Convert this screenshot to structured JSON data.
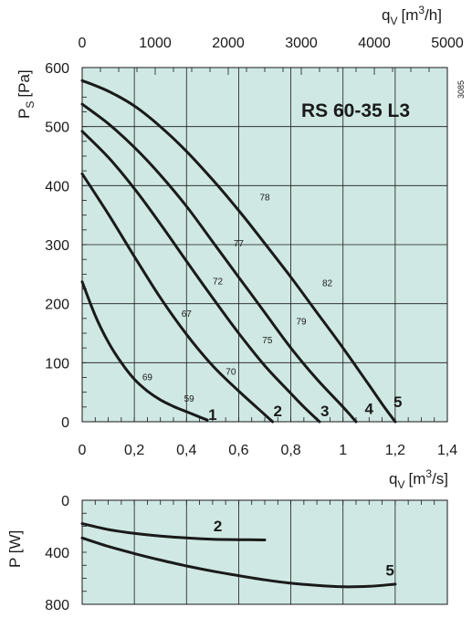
{
  "chart_data": [
    {
      "type": "line",
      "title": "RS 60-35 L3",
      "code": "3085",
      "xlabel": "q",
      "xlabel_sub": "V",
      "xlabel_unit": "[m",
      "xlabel_sup": "3",
      "xlabel_unit_end": "/s]",
      "x2label": "q",
      "x2label_sub": "V",
      "x2label_unit": "[m",
      "x2label_sup": "3",
      "x2label_unit_end": "/h]",
      "ylabel": "P",
      "ylabel_sub": "S",
      "ylabel_unit": "[Pa]",
      "xlim": [
        0,
        1.4
      ],
      "ylim": [
        0,
        600
      ],
      "x2lim": [
        0,
        5000
      ],
      "x_ticks": [
        "0",
        "0,2",
        "0,4",
        "0,6",
        "0,8",
        "1",
        "1,2",
        "1,4"
      ],
      "x2_ticks": [
        "0",
        "1000",
        "2000",
        "3000",
        "4000",
        "5000"
      ],
      "y_ticks": [
        "0",
        "100",
        "200",
        "300",
        "400",
        "500",
        "600"
      ],
      "grid": true,
      "background": "#cfe8e3",
      "series": [
        {
          "name": "1",
          "x": [
            0,
            0.05,
            0.1,
            0.15,
            0.2,
            0.25,
            0.3,
            0.35,
            0.4,
            0.45,
            0.48
          ],
          "y": [
            237,
            180,
            135,
            100,
            72,
            52,
            37,
            26,
            17,
            8,
            3
          ]
        },
        {
          "name": "2",
          "x": [
            0,
            0.1,
            0.2,
            0.3,
            0.4,
            0.5,
            0.6,
            0.7,
            0.73
          ],
          "y": [
            420,
            352,
            280,
            210,
            148,
            95,
            52,
            12,
            0
          ]
        },
        {
          "name": "3",
          "x": [
            0,
            0.1,
            0.2,
            0.3,
            0.4,
            0.5,
            0.6,
            0.7,
            0.8,
            0.85,
            0.91
          ],
          "y": [
            492,
            448,
            395,
            335,
            272,
            210,
            150,
            95,
            48,
            25,
            0
          ]
        },
        {
          "name": "4",
          "x": [
            0,
            0.1,
            0.2,
            0.3,
            0.4,
            0.5,
            0.6,
            0.7,
            0.8,
            0.9,
            1.0,
            1.05
          ],
          "y": [
            538,
            505,
            465,
            418,
            365,
            305,
            245,
            185,
            125,
            72,
            25,
            0
          ]
        },
        {
          "name": "5",
          "x": [
            0,
            0.1,
            0.2,
            0.3,
            0.4,
            0.5,
            0.6,
            0.7,
            0.8,
            0.9,
            1.0,
            1.1,
            1.15,
            1.2
          ],
          "y": [
            578,
            560,
            535,
            500,
            458,
            410,
            358,
            302,
            245,
            185,
            125,
            62,
            30,
            0
          ]
        }
      ],
      "efficiency_labels": [
        {
          "text": "69",
          "x": 0.25,
          "y": 70
        },
        {
          "text": "59",
          "x": 0.41,
          "y": 34
        },
        {
          "text": "67",
          "x": 0.4,
          "y": 178
        },
        {
          "text": "70",
          "x": 0.57,
          "y": 80
        },
        {
          "text": "72",
          "x": 0.52,
          "y": 233
        },
        {
          "text": "75",
          "x": 0.71,
          "y": 133
        },
        {
          "text": "77",
          "x": 0.6,
          "y": 297
        },
        {
          "text": "79",
          "x": 0.84,
          "y": 165
        },
        {
          "text": "78",
          "x": 0.7,
          "y": 375
        },
        {
          "text": "82",
          "x": 0.94,
          "y": 230
        }
      ],
      "curve_labels": [
        {
          "text": "1",
          "x": 0.5,
          "y": 3
        },
        {
          "text": "2",
          "x": 0.75,
          "y": 9
        },
        {
          "text": "3",
          "x": 0.93,
          "y": 9
        },
        {
          "text": "4",
          "x": 1.1,
          "y": 13
        },
        {
          "text": "5",
          "x": 1.21,
          "y": 25
        }
      ]
    },
    {
      "type": "line",
      "xlabel": "q",
      "xlabel_sub": "V",
      "xlabel_unit": "[m",
      "xlabel_sup": "3",
      "xlabel_unit_end": "/s]",
      "ylabel": "P [W]",
      "xlim": [
        0,
        1.4
      ],
      "ylim": [
        0,
        800
      ],
      "y_inverted": true,
      "y_ticks": [
        "0",
        "400",
        "800"
      ],
      "grid": true,
      "series": [
        {
          "name": "2",
          "x": [
            0,
            0.1,
            0.2,
            0.3,
            0.4,
            0.5,
            0.6,
            0.7
          ],
          "y": [
            180,
            225,
            255,
            275,
            290,
            300,
            303,
            305
          ]
        },
        {
          "name": "5",
          "x": [
            0,
            0.1,
            0.2,
            0.3,
            0.4,
            0.5,
            0.6,
            0.7,
            0.8,
            0.9,
            1.0,
            1.1,
            1.2
          ],
          "y": [
            290,
            355,
            410,
            460,
            505,
            545,
            580,
            612,
            638,
            655,
            665,
            662,
            645
          ]
        }
      ],
      "curve_labels": [
        {
          "text": "2",
          "x": 0.52,
          "y": 240
        },
        {
          "text": "5",
          "x": 1.18,
          "y": 580
        }
      ]
    }
  ]
}
